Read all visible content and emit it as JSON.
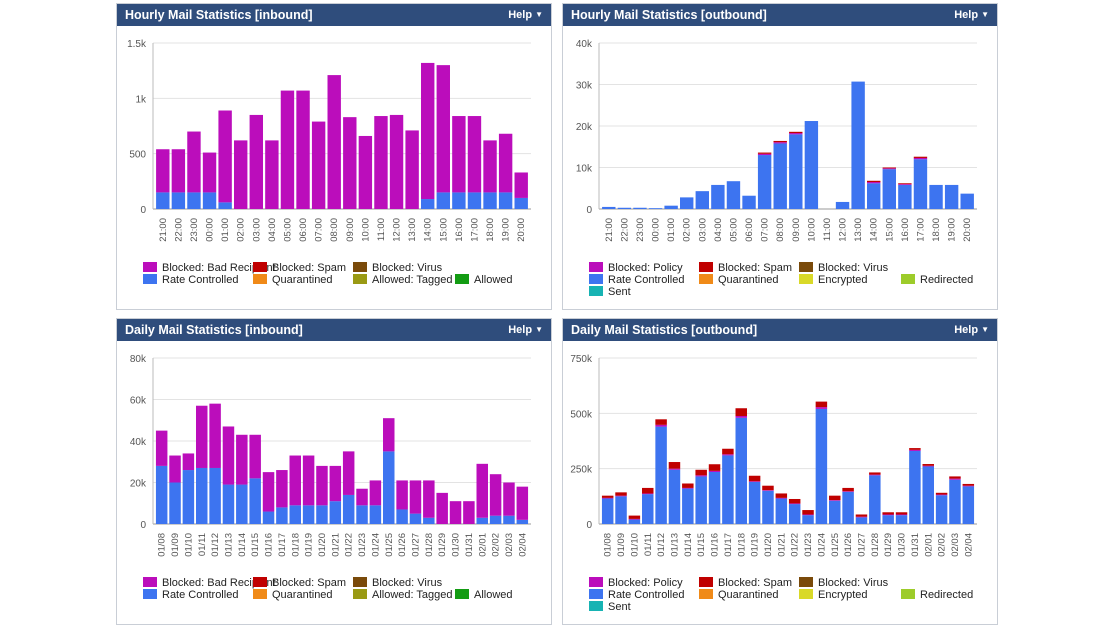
{
  "colors": {
    "blocked_recipient": "#bb0dbb",
    "rate_controlled": "#3d74f0",
    "blocked_policy": "#bb0dbb",
    "blocked_spam": "#c00000",
    "blocked_virus": "#7a4a0a",
    "quarantined": "#f08a18",
    "allowed_tagged": "#9a9a14",
    "allowed": "#139c13",
    "encrypted": "#d9d928",
    "redirected": "#9dcc2a",
    "sent": "#17b3b3"
  },
  "help_label": "Help",
  "panels": [
    {
      "title": "Hourly Mail Statistics [inbound]",
      "legend": [
        [
          "Blocked: Bad Recipient",
          "Blocked: Spam",
          "Blocked: Virus"
        ],
        [
          "Rate Controlled",
          "Quarantined",
          "Allowed: Tagged",
          "Allowed"
        ]
      ],
      "chart_data": {
        "type": "bar",
        "stacked": true,
        "yticks": [
          "0",
          "500",
          "1k",
          "1.5k"
        ],
        "ylim": [
          0,
          1500
        ],
        "categories": [
          "21:00",
          "22:00",
          "23:00",
          "00:00",
          "01:00",
          "02:00",
          "03:00",
          "04:00",
          "05:00",
          "06:00",
          "07:00",
          "08:00",
          "09:00",
          "10:00",
          "11:00",
          "12:00",
          "13:00",
          "14:00",
          "15:00",
          "16:00",
          "17:00",
          "18:00",
          "19:00",
          "20:00"
        ],
        "series": [
          {
            "name": "Rate Controlled",
            "color": "rate_controlled",
            "values": [
              150,
              150,
              150,
              150,
              60,
              0,
              0,
              0,
              0,
              0,
              0,
              0,
              0,
              0,
              0,
              0,
              0,
              90,
              150,
              150,
              150,
              150,
              150,
              100
            ]
          },
          {
            "name": "Blocked: Bad Recipient",
            "color": "blocked_recipient",
            "values": [
              390,
              390,
              550,
              360,
              830,
              620,
              850,
              620,
              1070,
              1070,
              790,
              1210,
              830,
              660,
              840,
              850,
              710,
              1230,
              1150,
              690,
              690,
              470,
              530,
              230
            ]
          }
        ]
      }
    },
    {
      "title": "Hourly Mail Statistics [outbound]",
      "legend": [
        [
          "Blocked: Policy",
          "Blocked: Spam",
          "Blocked: Virus"
        ],
        [
          "Rate Controlled",
          "Quarantined",
          "Encrypted",
          "Redirected"
        ],
        [
          "Sent"
        ]
      ],
      "chart_data": {
        "type": "bar",
        "stacked": true,
        "yticks": [
          "0",
          "10k",
          "20k",
          "30k",
          "40k"
        ],
        "ylim": [
          0,
          40000
        ],
        "categories": [
          "21:00",
          "22:00",
          "23:00",
          "00:00",
          "01:00",
          "02:00",
          "03:00",
          "04:00",
          "05:00",
          "06:00",
          "07:00",
          "08:00",
          "09:00",
          "10:00",
          "11:00",
          "12:00",
          "13:00",
          "14:00",
          "15:00",
          "16:00",
          "17:00",
          "18:00",
          "19:00",
          "20:00"
        ],
        "series": [
          {
            "name": "Rate Controlled",
            "color": "rate_controlled",
            "values": [
              500,
              300,
              300,
              200,
              800,
              2800,
              4300,
              5800,
              6700,
              3200,
              13000,
              15800,
              18000,
              21200,
              0,
              1700,
              30700,
              6200,
              9600,
              5800,
              12000,
              5800,
              5800,
              3700
            ]
          },
          {
            "name": "Blocked: Policy",
            "color": "blocked_policy",
            "values": [
              0,
              0,
              0,
              0,
              0,
              0,
              0,
              0,
              0,
              0,
              300,
              300,
              300,
              0,
              0,
              0,
              0,
              300,
              200,
              200,
              300,
              0,
              0,
              0
            ]
          },
          {
            "name": "Blocked: Spam",
            "color": "blocked_spam",
            "values": [
              0,
              0,
              0,
              0,
              0,
              0,
              0,
              0,
              0,
              0,
              300,
              300,
              300,
              0,
              0,
              0,
              0,
              300,
              200,
              200,
              300,
              0,
              0,
              0
            ]
          }
        ]
      }
    },
    {
      "title": "Daily Mail Statistics [inbound]",
      "legend": [
        [
          "Blocked: Bad Recipient",
          "Blocked: Spam",
          "Blocked: Virus"
        ],
        [
          "Rate Controlled",
          "Quarantined",
          "Allowed: Tagged",
          "Allowed"
        ]
      ],
      "chart_data": {
        "type": "bar",
        "stacked": true,
        "yticks": [
          "0",
          "20k",
          "40k",
          "60k",
          "80k"
        ],
        "ylim": [
          0,
          80000
        ],
        "categories": [
          "01/08",
          "01/09",
          "01/10",
          "01/11",
          "01/12",
          "01/13",
          "01/14",
          "01/15",
          "01/16",
          "01/17",
          "01/18",
          "01/19",
          "01/20",
          "01/21",
          "01/22",
          "01/23",
          "01/24",
          "01/25",
          "01/26",
          "01/27",
          "01/28",
          "01/29",
          "01/30",
          "01/31",
          "02/01",
          "02/02",
          "02/03",
          "02/04"
        ],
        "series": [
          {
            "name": "Rate Controlled",
            "color": "rate_controlled",
            "values": [
              28000,
              20000,
              26000,
              27000,
              27000,
              19000,
              19000,
              22000,
              6000,
              8000,
              9000,
              9000,
              9000,
              11000,
              14000,
              9000,
              9000,
              35000,
              7000,
              5000,
              3000,
              0,
              0,
              0,
              3000,
              4000,
              4000,
              2000
            ]
          },
          {
            "name": "Blocked: Bad Recipient",
            "color": "blocked_recipient",
            "values": [
              17000,
              13000,
              8000,
              30000,
              31000,
              28000,
              24000,
              21000,
              19000,
              18000,
              24000,
              24000,
              19000,
              17000,
              21000,
              8000,
              12000,
              16000,
              14000,
              16000,
              18000,
              15000,
              11000,
              11000,
              26000,
              20000,
              16000,
              16000
            ]
          }
        ]
      }
    },
    {
      "title": "Daily Mail Statistics [outbound]",
      "legend": [
        [
          "Blocked: Policy",
          "Blocked: Spam",
          "Blocked: Virus"
        ],
        [
          "Rate Controlled",
          "Quarantined",
          "Encrypted",
          "Redirected"
        ],
        [
          "Sent"
        ]
      ],
      "chart_data": {
        "type": "bar",
        "stacked": true,
        "yticks": [
          "0",
          "250k",
          "500k",
          "750k"
        ],
        "ylim": [
          0,
          750000
        ],
        "categories": [
          "01/08",
          "01/09",
          "01/10",
          "01/11",
          "01/12",
          "01/13",
          "01/14",
          "01/15",
          "01/16",
          "01/17",
          "01/18",
          "01/19",
          "01/20",
          "01/21",
          "01/22",
          "01/23",
          "01/24",
          "01/25",
          "01/26",
          "01/27",
          "01/28",
          "01/29",
          "01/30",
          "01/31",
          "02/01",
          "02/02",
          "02/03",
          "02/04"
        ],
        "series": [
          {
            "name": "Rate Controlled",
            "color": "rate_controlled",
            "values": [
              115000,
              125000,
              20000,
              135000,
              440000,
              245000,
              160000,
              215000,
              235000,
              310000,
              480000,
              190000,
              150000,
              115000,
              90000,
              40000,
              520000,
              105000,
              145000,
              30000,
              220000,
              40000,
              40000,
              330000,
              260000,
              130000,
              200000,
              170000
            ]
          },
          {
            "name": "Blocked: Policy",
            "color": "blocked_policy",
            "values": [
              3000,
              3000,
              3000,
              3000,
              8000,
              5000,
              3000,
              5000,
              5000,
              5000,
              8000,
              3000,
              3000,
              3000,
              3000,
              3000,
              8000,
              3000,
              3000,
              3000,
              3000,
              3000,
              3000,
              5000,
              3000,
              3000,
              5000,
              3000
            ]
          },
          {
            "name": "Blocked: Spam",
            "color": "blocked_spam",
            "values": [
              10000,
              15000,
              15000,
              25000,
              25000,
              30000,
              20000,
              25000,
              30000,
              25000,
              35000,
              25000,
              20000,
              20000,
              20000,
              20000,
              25000,
              20000,
              15000,
              10000,
              10000,
              10000,
              10000,
              8000,
              8000,
              8000,
              10000,
              8000
            ]
          }
        ]
      }
    }
  ]
}
